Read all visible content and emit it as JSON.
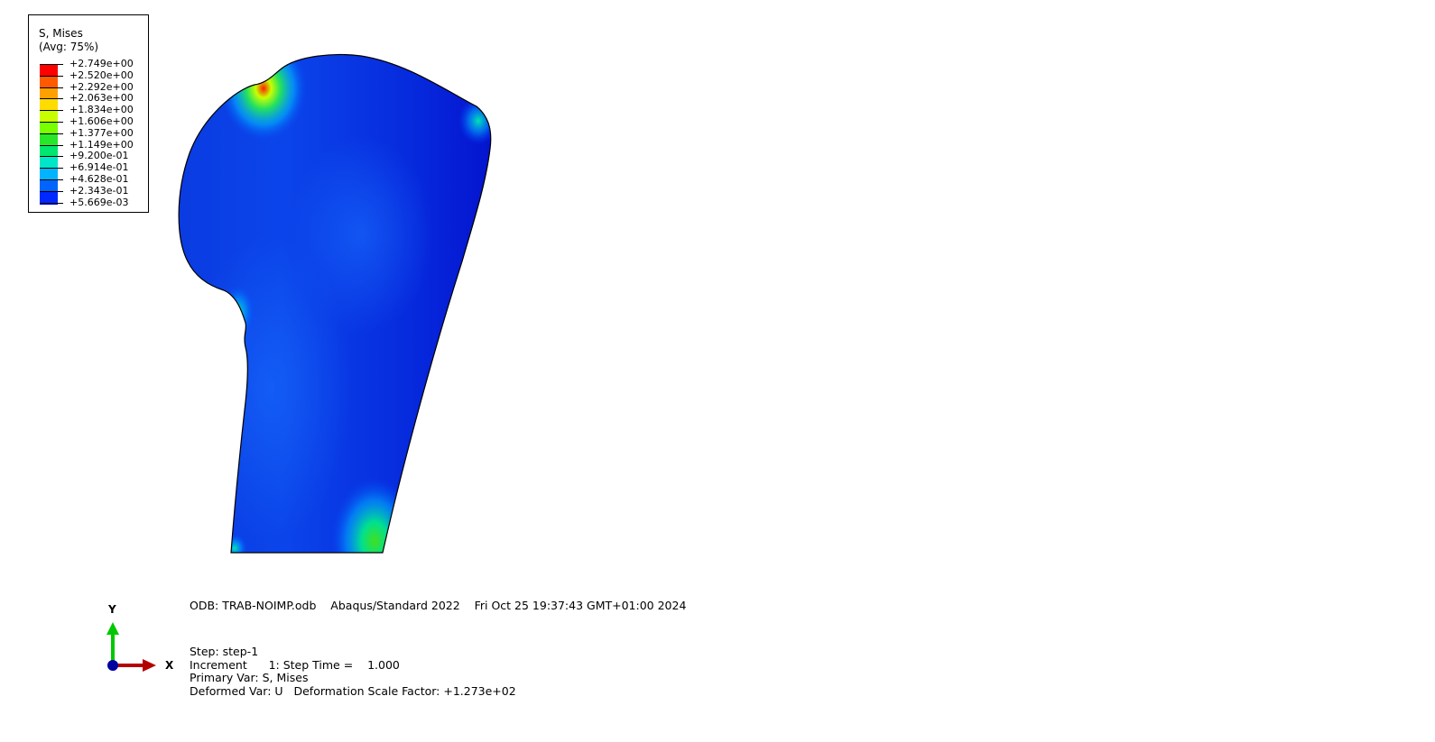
{
  "legend": {
    "title": "S, Mises",
    "subtitle": "(Avg: 75%)",
    "levels": [
      "+2.749e+00",
      "+2.520e+00",
      "+2.292e+00",
      "+2.063e+00",
      "+1.834e+00",
      "+1.606e+00",
      "+1.377e+00",
      "+1.149e+00",
      "+9.200e-01",
      "+6.914e-01",
      "+4.628e-01",
      "+2.343e-01",
      "+5.669e-03"
    ],
    "colors": [
      "#ff0000",
      "#ff5a00",
      "#ffa000",
      "#ffdc00",
      "#c8ff00",
      "#78ff00",
      "#28e628",
      "#00e66e",
      "#00e6c8",
      "#00b4ff",
      "#0064ff",
      "#0028ff",
      "#0000e6"
    ]
  },
  "triad": {
    "x_label": "X",
    "y_label": "Y",
    "x_color": "#b40000",
    "y_color": "#00c800",
    "origin_color": "#0000a0"
  },
  "info": {
    "odb_line": "ODB: TRAB-NOIMP.odb    Abaqus/Standard 2022    Fri Oct 25 19:37:43 GMT+01:00 2024",
    "step_line": "Step: step-1",
    "increment_line": "Increment      1: Step Time =    1.000",
    "primary_line": "Primary Var: S, Mises",
    "deformed_line": "Deformed Var: U   Deformation Scale Factor: +1.273e+02"
  }
}
